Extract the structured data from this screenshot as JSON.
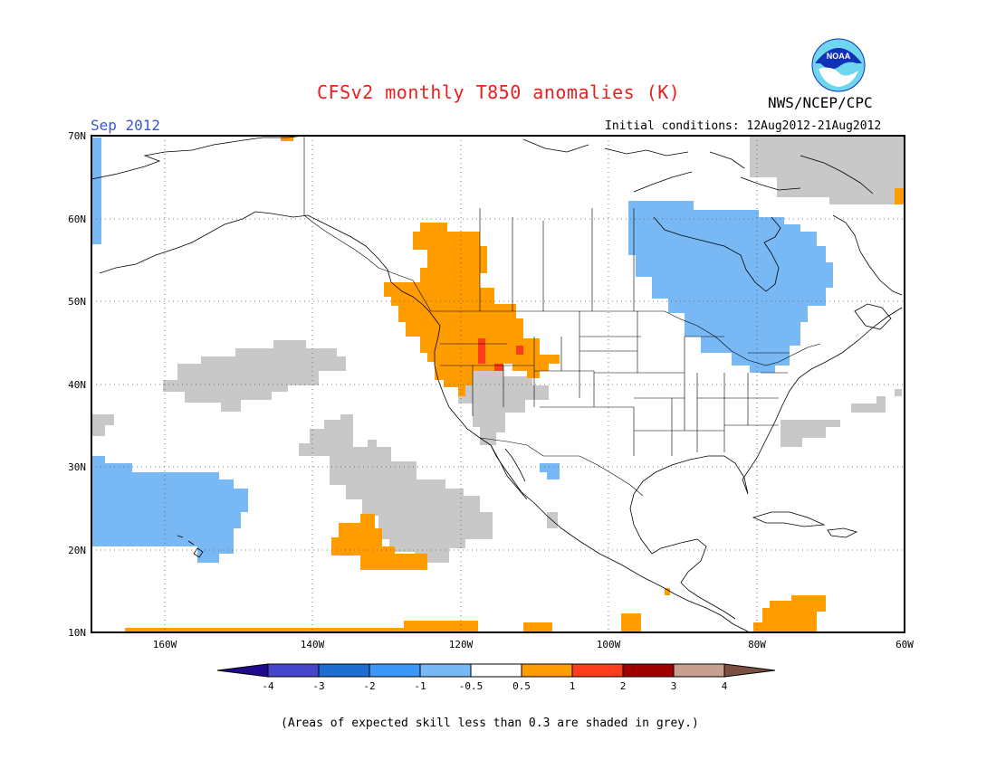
{
  "header": {
    "title": "CFSv2 monthly T850 anomalies (K)",
    "agency": "NWS/NCEP/CPC",
    "logo_text": "NOAA",
    "period": "Sep 2012",
    "initial_conditions": "Initial conditions: 12Aug2012-21Aug2012"
  },
  "map": {
    "lon_range": [
      -172,
      -60
    ],
    "lat_range": [
      10,
      70
    ],
    "lat_labels": [
      "70N",
      "60N",
      "50N",
      "40N",
      "30N",
      "20N",
      "10N"
    ],
    "lon_labels": [
      "160W",
      "140W",
      "120W",
      "100W",
      "80W",
      "60W"
    ],
    "grid": "dotted",
    "regions": [
      {
        "category": "+0.5 to 1",
        "color": "#ff9c00",
        "area": "Pacific Northwest / northern Rockies"
      },
      {
        "category": "+1 to 2",
        "color": "#ff3c1e",
        "area": "Idaho / Oregon"
      },
      {
        "category": "-1 to -0.5",
        "color": "#78b8f5",
        "area": "Hudson Bay / Ontario / Great Lakes"
      },
      {
        "category": "-1 to -0.5",
        "color": "#78b8f5",
        "area": "Central Pacific near Hawaii"
      },
      {
        "category": "+0.5 to 1",
        "color": "#ff9c00",
        "area": "Eastern Pacific near 20N"
      },
      {
        "category": "skill < 0.3",
        "color": "#c8c8c8",
        "area": "Greenland / NE Canada"
      },
      {
        "category": "skill < 0.3",
        "color": "#c8c8c8",
        "area": "Northeast Pacific"
      },
      {
        "category": "skill < 0.3",
        "color": "#c8c8c8",
        "area": "Great Basin"
      },
      {
        "category": "skill < 0.3",
        "color": "#c8c8c8",
        "area": "Subtropical Pacific off Baja"
      }
    ]
  },
  "colorbar": {
    "labels": [
      "-4",
      "-3",
      "-2",
      "-1",
      "-0.5",
      "0.5",
      "1",
      "2",
      "3",
      "4"
    ],
    "colors": [
      "#1e0a8c",
      "#4646cd",
      "#1e6ed2",
      "#3c96f5",
      "#78b8f5",
      "#ffffff",
      "#ff9c00",
      "#ff3c1e",
      "#a00000",
      "#c8a090",
      "#7a5040"
    ]
  },
  "footnote": "(Areas of expected skill less than 0.3 are shaded in grey.)"
}
